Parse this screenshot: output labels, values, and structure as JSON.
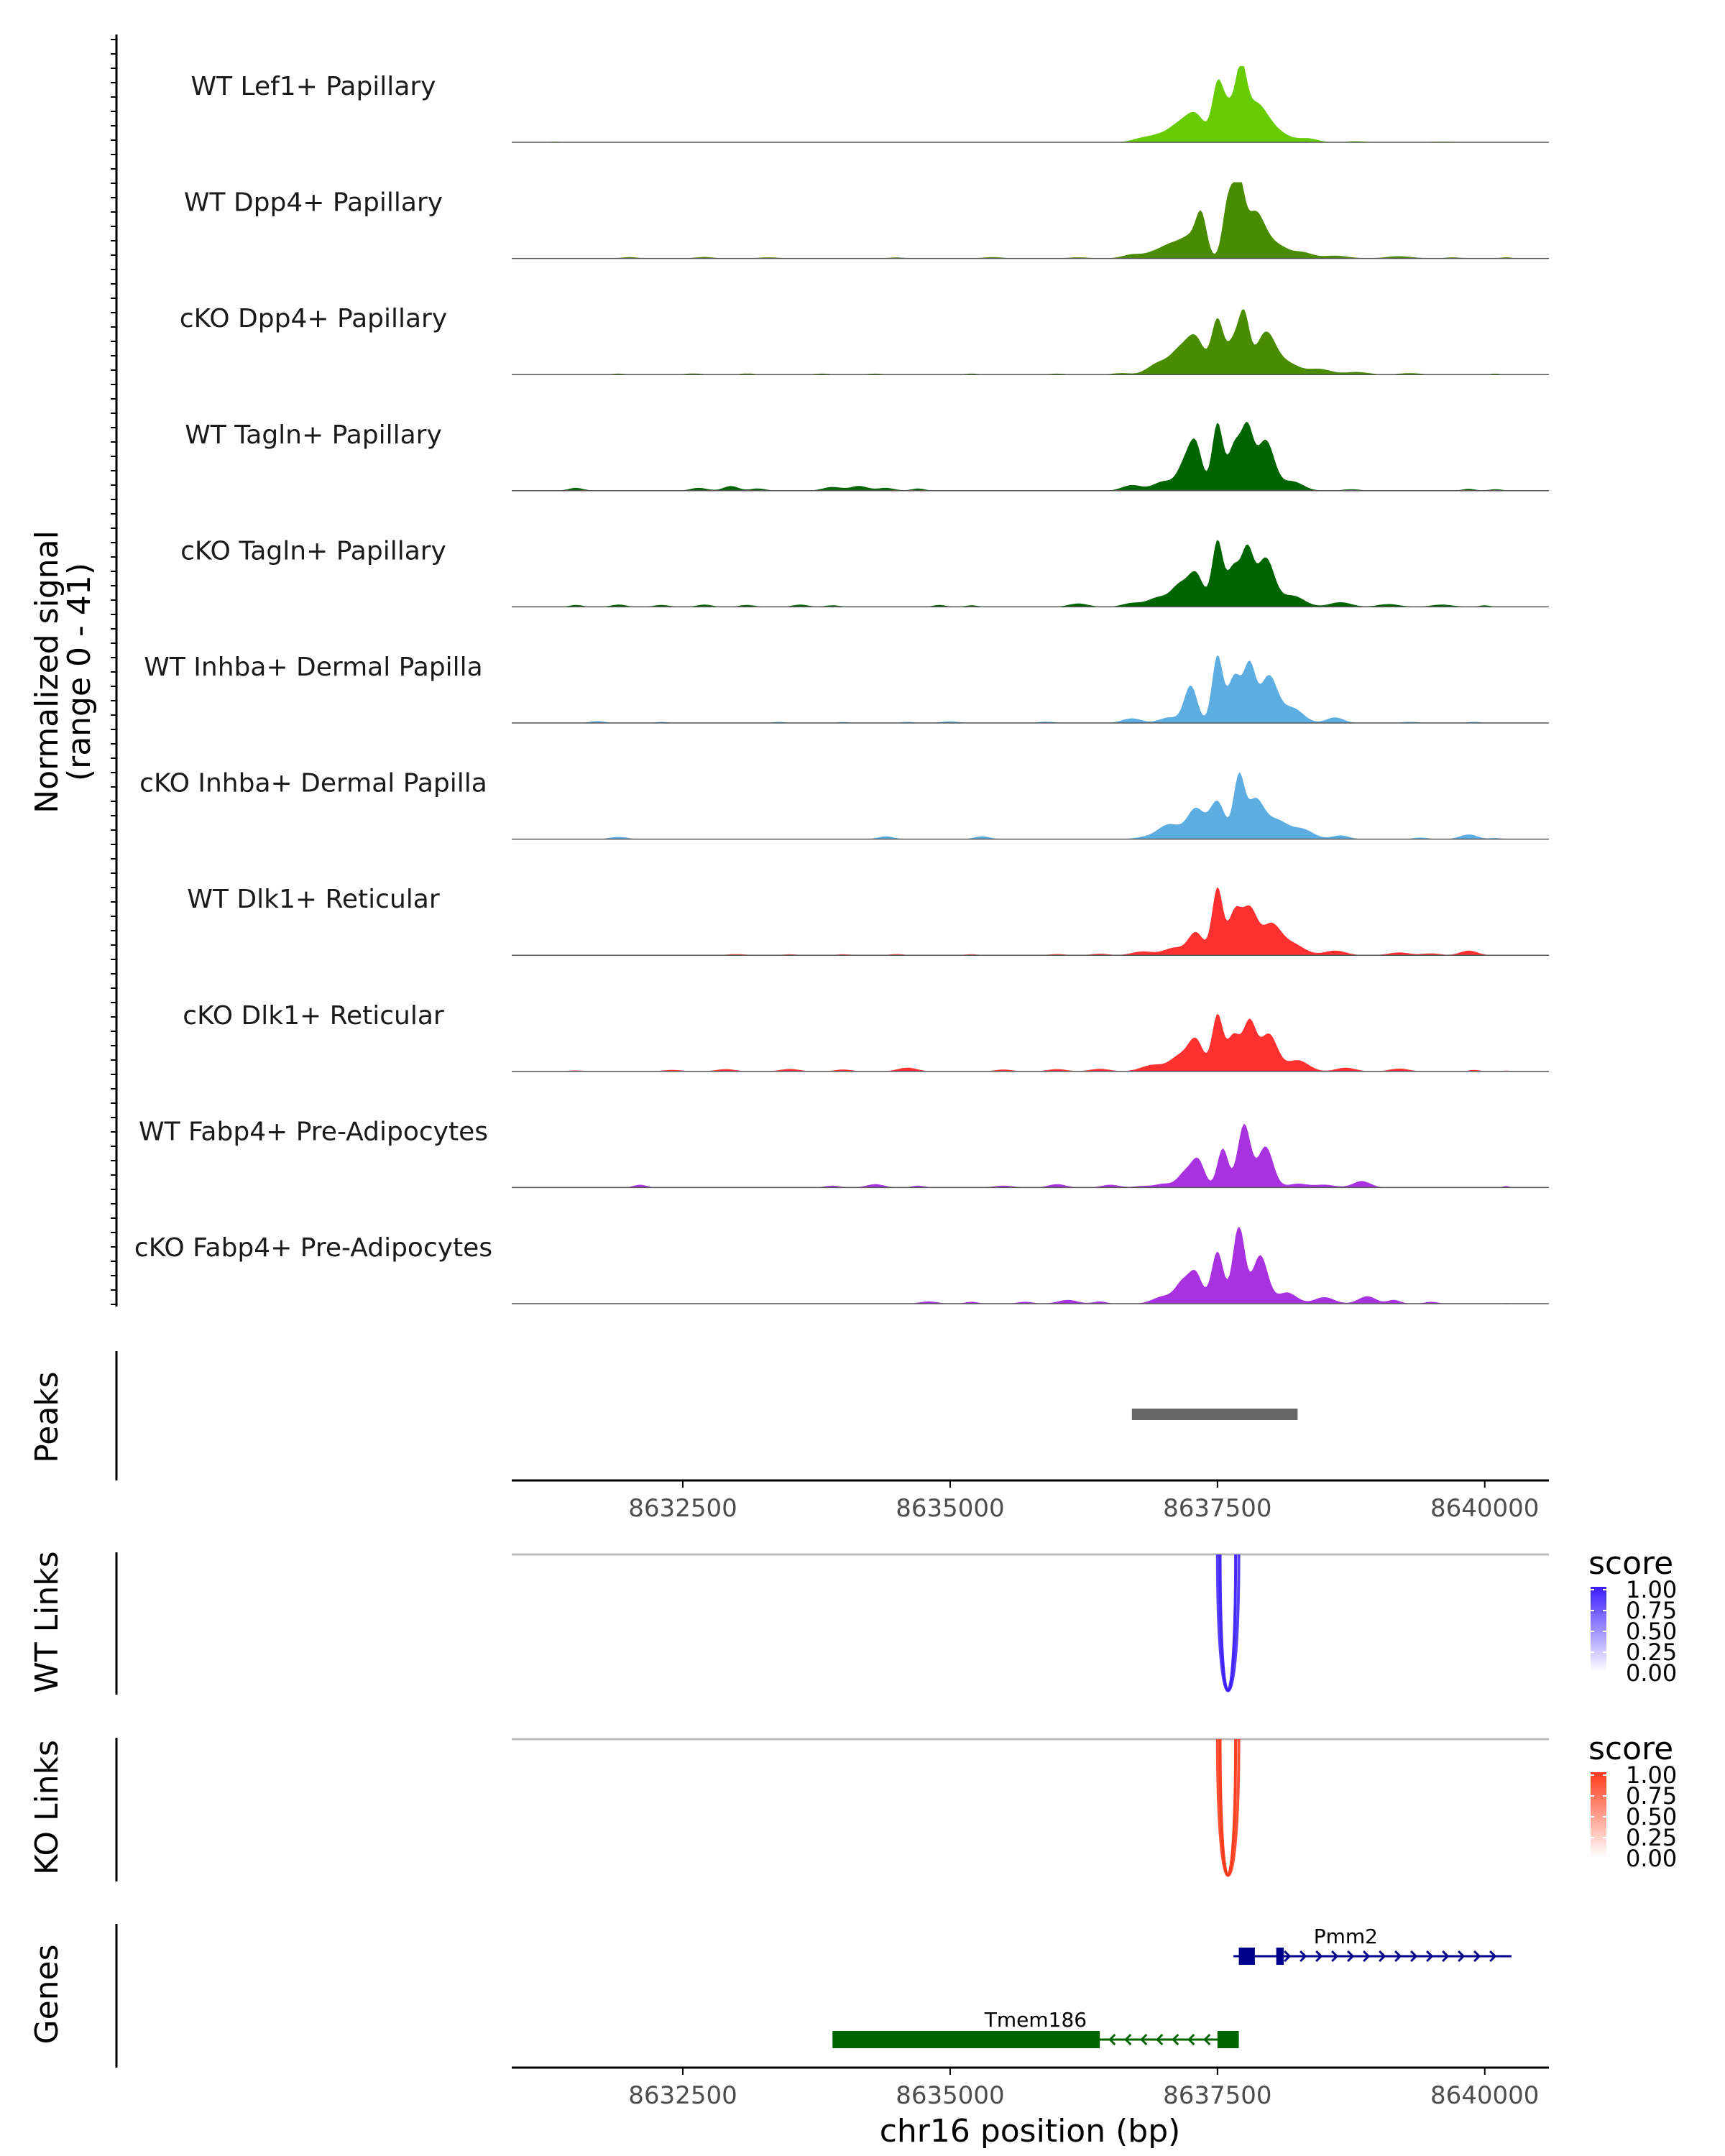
{
  "chart_data": {
    "type": "area",
    "region": "chr16",
    "xlabel": "chr16 position (bp)",
    "xlim": [
      8630900,
      8640600
    ],
    "xticks": [
      8632500,
      8635000,
      8637500,
      8640000
    ],
    "xtick_labels": [
      "8632500",
      "8635000",
      "8637500",
      "8640000"
    ],
    "ylabel_line1": "Normalized signal",
    "ylabel_line2": "(range 0 - 41)",
    "ylim": [
      0,
      41
    ],
    "coverage_tracks": [
      {
        "name": "WT Lef1+ Papillary",
        "color": "#66cc00",
        "peaks": [
          [
            8631300,
            0.4,
            50
          ],
          [
            8636800,
            2.0,
            100
          ],
          [
            8637000,
            4.0,
            110
          ],
          [
            8637150,
            7.0,
            90
          ],
          [
            8637300,
            14.0,
            90
          ],
          [
            8637500,
            28.0,
            50
          ],
          [
            8637600,
            17.0,
            60
          ],
          [
            8637720,
            32.0,
            50
          ],
          [
            8637850,
            20.0,
            110
          ],
          [
            8638050,
            5.0,
            120
          ],
          [
            8638350,
            2.0,
            90
          ],
          [
            8638800,
            0.6,
            90
          ],
          [
            8639600,
            0.4,
            120
          ]
        ]
      },
      {
        "name": "WT Dpp4+ Papillary",
        "color": "#4a8c00",
        "peaks": [
          [
            8632000,
            0.7,
            70
          ],
          [
            8632700,
            0.8,
            80
          ],
          [
            8633300,
            0.6,
            90
          ],
          [
            8634500,
            0.5,
            70
          ],
          [
            8635400,
            0.7,
            90
          ],
          [
            8636200,
            0.6,
            90
          ],
          [
            8636700,
            2.0,
            90
          ],
          [
            8636950,
            4.0,
            110
          ],
          [
            8637100,
            6.0,
            90
          ],
          [
            8637250,
            10.0,
            80
          ],
          [
            8637350,
            21.0,
            50
          ],
          [
            8637600,
            30.0,
            50
          ],
          [
            8637700,
            36.0,
            50
          ],
          [
            8637850,
            24.0,
            90
          ],
          [
            8638050,
            7.0,
            110
          ],
          [
            8638300,
            3.0,
            90
          ],
          [
            8638600,
            1.5,
            120
          ],
          [
            8639200,
            1.2,
            120
          ],
          [
            8639700,
            0.6,
            70
          ],
          [
            8640200,
            0.6,
            50
          ]
        ]
      },
      {
        "name": "cKO Dpp4+ Papillary",
        "color": "#4a8c00",
        "peaks": [
          [
            8631900,
            0.5,
            70
          ],
          [
            8632600,
            0.6,
            80
          ],
          [
            8633100,
            0.6,
            70
          ],
          [
            8633800,
            0.5,
            80
          ],
          [
            8634300,
            0.5,
            70
          ],
          [
            8635200,
            0.5,
            70
          ],
          [
            8636000,
            0.5,
            80
          ],
          [
            8636600,
            0.8,
            80
          ],
          [
            8636950,
            6.0,
            100
          ],
          [
            8637150,
            12.0,
            90
          ],
          [
            8637300,
            18.0,
            80
          ],
          [
            8637500,
            29.0,
            55
          ],
          [
            8637650,
            17.0,
            60
          ],
          [
            8637750,
            29.0,
            50
          ],
          [
            8637950,
            22.0,
            90
          ],
          [
            8638150,
            6.0,
            110
          ],
          [
            8638450,
            3.0,
            110
          ],
          [
            8638800,
            1.4,
            110
          ],
          [
            8639300,
            0.8,
            100
          ],
          [
            8640100,
            0.5,
            50
          ]
        ]
      },
      {
        "name": "WT Tagln+ Papillary",
        "color": "#006400",
        "peaks": [
          [
            8631500,
            1.5,
            70
          ],
          [
            8632650,
            1.5,
            80
          ],
          [
            8632950,
            2.5,
            70
          ],
          [
            8633200,
            1.2,
            70
          ],
          [
            8633900,
            2.0,
            90
          ],
          [
            8634150,
            2.5,
            80
          ],
          [
            8634400,
            1.5,
            80
          ],
          [
            8634700,
            1.2,
            60
          ],
          [
            8636700,
            3.0,
            90
          ],
          [
            8637000,
            5.0,
            100
          ],
          [
            8637200,
            14.0,
            70
          ],
          [
            8637300,
            22.0,
            60
          ],
          [
            8637500,
            36.0,
            50
          ],
          [
            8637660,
            24.0,
            60
          ],
          [
            8637780,
            31.0,
            55
          ],
          [
            8637950,
            27.0,
            80
          ],
          [
            8638200,
            5.0,
            100
          ],
          [
            8638750,
            0.8,
            80
          ],
          [
            8639850,
            1.0,
            60
          ],
          [
            8640100,
            0.8,
            60
          ]
        ]
      },
      {
        "name": "cKO Tagln+ Papillary",
        "color": "#006400",
        "peaks": [
          [
            8631500,
            1.0,
            60
          ],
          [
            8631900,
            1.2,
            70
          ],
          [
            8632300,
            1.0,
            70
          ],
          [
            8632700,
            1.2,
            70
          ],
          [
            8633100,
            1.0,
            70
          ],
          [
            8633600,
            1.2,
            70
          ],
          [
            8633900,
            0.8,
            70
          ],
          [
            8634900,
            1.0,
            60
          ],
          [
            8635200,
            0.8,
            60
          ],
          [
            8636200,
            1.8,
            90
          ],
          [
            8636700,
            2.0,
            90
          ],
          [
            8636950,
            5.0,
            100
          ],
          [
            8637150,
            11.0,
            80
          ],
          [
            8637300,
            17.0,
            70
          ],
          [
            8637500,
            35.0,
            50
          ],
          [
            8637650,
            21.0,
            60
          ],
          [
            8637780,
            29.0,
            55
          ],
          [
            8637950,
            26.0,
            80
          ],
          [
            8638200,
            6.0,
            110
          ],
          [
            8638650,
            2.5,
            100
          ],
          [
            8639100,
            1.5,
            100
          ],
          [
            8639600,
            1.2,
            100
          ],
          [
            8640000,
            0.8,
            50
          ]
        ]
      },
      {
        "name": "WT Inhba+ Dermal Papilla",
        "color": "#5dade2",
        "peaks": [
          [
            8631700,
            1.0,
            70
          ],
          [
            8632300,
            0.6,
            60
          ],
          [
            8633400,
            0.6,
            60
          ],
          [
            8634000,
            0.5,
            60
          ],
          [
            8634600,
            0.6,
            60
          ],
          [
            8635000,
            0.8,
            90
          ],
          [
            8635900,
            0.7,
            80
          ],
          [
            8636700,
            2.5,
            90
          ],
          [
            8637050,
            3.0,
            90
          ],
          [
            8637250,
            20.0,
            60
          ],
          [
            8637500,
            36.0,
            50
          ],
          [
            8637660,
            25.0,
            60
          ],
          [
            8637800,
            30.0,
            55
          ],
          [
            8637980,
            25.0,
            80
          ],
          [
            8638200,
            8.0,
            100
          ],
          [
            8638600,
            3.0,
            80
          ],
          [
            8639300,
            0.6,
            80
          ],
          [
            8639900,
            0.6,
            60
          ]
        ]
      },
      {
        "name": "cKO Inhba+ Dermal Papilla",
        "color": "#5dade2",
        "peaks": [
          [
            8631900,
            1.2,
            80
          ],
          [
            8634400,
            1.5,
            70
          ],
          [
            8635300,
            1.5,
            70
          ],
          [
            8636800,
            0.8,
            80
          ],
          [
            8637050,
            8.0,
            110
          ],
          [
            8637300,
            16.0,
            80
          ],
          [
            8637500,
            20.0,
            70
          ],
          [
            8637700,
            32.0,
            50
          ],
          [
            8637850,
            20.0,
            80
          ],
          [
            8638050,
            10.0,
            110
          ],
          [
            8638300,
            5.0,
            100
          ],
          [
            8638650,
            2.0,
            80
          ],
          [
            8639400,
            0.8,
            70
          ],
          [
            8639850,
            2.5,
            80
          ],
          [
            8640100,
            0.6,
            50
          ]
        ]
      },
      {
        "name": "WT Dlk1+ Reticular",
        "color": "#ff3030",
        "peaks": [
          [
            8633000,
            0.6,
            90
          ],
          [
            8633500,
            0.5,
            70
          ],
          [
            8634000,
            0.5,
            70
          ],
          [
            8634500,
            0.6,
            70
          ],
          [
            8635200,
            0.5,
            70
          ],
          [
            8636000,
            0.6,
            80
          ],
          [
            8636400,
            0.8,
            80
          ],
          [
            8636800,
            2.0,
            100
          ],
          [
            8637100,
            4.0,
            100
          ],
          [
            8637300,
            12.0,
            70
          ],
          [
            8637500,
            36.0,
            50
          ],
          [
            8637660,
            22.0,
            60
          ],
          [
            8637800,
            24.0,
            70
          ],
          [
            8638000,
            16.0,
            90
          ],
          [
            8638200,
            6.0,
            110
          ],
          [
            8638600,
            2.5,
            100
          ],
          [
            8639200,
            1.5,
            100
          ],
          [
            8639500,
            1.0,
            80
          ],
          [
            8639850,
            2.5,
            80
          ]
        ]
      },
      {
        "name": "cKO Dlk1+ Reticular",
        "color": "#ff3030",
        "peaks": [
          [
            8631500,
            0.5,
            80
          ],
          [
            8632400,
            0.8,
            90
          ],
          [
            8632900,
            1.2,
            90
          ],
          [
            8633500,
            1.3,
            90
          ],
          [
            8634000,
            1.0,
            80
          ],
          [
            8634600,
            2.0,
            90
          ],
          [
            8635500,
            1.0,
            80
          ],
          [
            8636000,
            1.2,
            90
          ],
          [
            8636400,
            1.4,
            90
          ],
          [
            8636900,
            3.5,
            110
          ],
          [
            8637150,
            8.0,
            90
          ],
          [
            8637300,
            16.0,
            70
          ],
          [
            8637500,
            30.0,
            50
          ],
          [
            8637650,
            19.0,
            60
          ],
          [
            8637800,
            26.0,
            60
          ],
          [
            8637980,
            20.0,
            80
          ],
          [
            8638250,
            6.0,
            100
          ],
          [
            8638700,
            2.0,
            90
          ],
          [
            8639200,
            1.5,
            90
          ],
          [
            8639900,
            0.8,
            50
          ],
          [
            8640200,
            0.4,
            50
          ]
        ]
      },
      {
        "name": "WT Fabp4+ Pre-Adipocytes",
        "color": "#a832e0",
        "peaks": [
          [
            8632100,
            1.5,
            60
          ],
          [
            8633900,
            1.0,
            70
          ],
          [
            8634300,
            1.8,
            80
          ],
          [
            8634700,
            1.0,
            60
          ],
          [
            8635500,
            1.0,
            90
          ],
          [
            8636000,
            1.8,
            80
          ],
          [
            8636500,
            1.5,
            80
          ],
          [
            8636800,
            0.8,
            80
          ],
          [
            8637000,
            2.0,
            80
          ],
          [
            8637200,
            8.0,
            70
          ],
          [
            8637320,
            14.0,
            60
          ],
          [
            8637550,
            21.0,
            50
          ],
          [
            8637750,
            34.0,
            60
          ],
          [
            8637950,
            22.0,
            70
          ],
          [
            8638250,
            2.0,
            90
          ],
          [
            8638500,
            1.5,
            100
          ],
          [
            8638850,
            3.5,
            80
          ],
          [
            8640200,
            0.8,
            30
          ]
        ]
      },
      {
        "name": "cKO Fabp4+ Pre-Adipocytes",
        "color": "#a832e0",
        "peaks": [
          [
            8634800,
            1.2,
            80
          ],
          [
            8635200,
            1.0,
            60
          ],
          [
            8635700,
            1.0,
            70
          ],
          [
            8636100,
            2.0,
            90
          ],
          [
            8636400,
            1.2,
            60
          ],
          [
            8637000,
            4.0,
            100
          ],
          [
            8637180,
            11.0,
            70
          ],
          [
            8637300,
            15.0,
            60
          ],
          [
            8637500,
            28.0,
            55
          ],
          [
            8637700,
            42.0,
            55
          ],
          [
            8637900,
            26.0,
            70
          ],
          [
            8638150,
            6.0,
            90
          ],
          [
            8638500,
            3.5,
            90
          ],
          [
            8638900,
            4.0,
            80
          ],
          [
            8639150,
            2.0,
            60
          ],
          [
            8639500,
            1.0,
            60
          ],
          [
            8640200,
            0.3,
            30
          ]
        ]
      }
    ],
    "peaks_track": {
      "label": "Peaks",
      "regions": [
        [
          8636700,
          8638250
        ]
      ],
      "color": "#666666"
    },
    "links_tracks": [
      {
        "label": "WT Links",
        "legend_title": "score",
        "color": "#3b1cff",
        "legend_ticks": [
          "1.00",
          "0.75",
          "0.50",
          "0.25",
          "0.00"
        ],
        "links": [
          {
            "start": 8637500,
            "end": 8637700,
            "score": 0.75
          },
          {
            "start": 8637525,
            "end": 8637670,
            "score": 0.9
          }
        ]
      },
      {
        "label": "KO Links",
        "legend_title": "score",
        "color": "#ff3a1a",
        "legend_ticks": [
          "1.00",
          "0.75",
          "0.50",
          "0.25",
          "0.00"
        ],
        "links": [
          {
            "start": 8637500,
            "end": 8637700,
            "score": 0.8
          },
          {
            "start": 8637525,
            "end": 8637670,
            "score": 0.95
          }
        ]
      }
    ],
    "genes_track": {
      "label": "Genes",
      "genes": [
        {
          "name": "Pmm2",
          "strand": "+",
          "start": 8637650,
          "end": 8640250,
          "color": "#00008b",
          "exons": [
            [
              8637700,
              8637850
            ],
            [
              8638050,
              8638120
            ]
          ]
        },
        {
          "name": "Tmem186",
          "strand": "-",
          "start": 8633900,
          "end": 8637700,
          "color": "#006400",
          "exons": [
            [
              8633900,
              8636400
            ],
            [
              8637500,
              8637700
            ]
          ]
        }
      ]
    }
  }
}
